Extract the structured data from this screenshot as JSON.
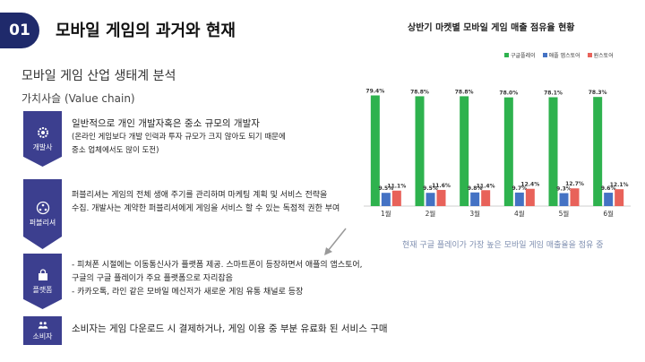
{
  "header": {
    "number": "01",
    "title": "모바일 게임의 과거와 현재"
  },
  "left": {
    "subtitle": "모바일 게임 산업 생태계 분석",
    "value_chain_title": "가치사슬 (Value chain)",
    "steps": [
      {
        "label": "개발사",
        "icon": "gear-icon"
      },
      {
        "label": "퍼블리셔",
        "icon": "network-icon"
      },
      {
        "label": "플랫폼",
        "icon": "shopping-bag-icon"
      },
      {
        "label": "소비자",
        "icon": "people-icon"
      }
    ],
    "descriptions": {
      "developer_lead": "일반적으로 개인 개발자혹은 중소 규모의 개발자",
      "developer_line2": "(온라인 게임보다 개발 인력과 투자 규모가 크지 않아도 되기 때문에",
      "developer_line3": "중소 업체에서도 많이 도전)",
      "publisher_line1": "퍼블리셔는 게임의 전체 생애 주기를 관리하며 마케팅 계획 및 서비스 전략을",
      "publisher_line2": "수집. 개발사는 계약한 퍼블리셔에게 게임을 서비스 할 수 있는 독점적 권한 부여",
      "platform_line1": "- 피쳐폰 시절에는 이동통신사가 플랫폼 제공. 스마트폰이 등장하면서 애플의 앱스토어,",
      "platform_line2": "구글의 구글 플레이가 주요 플랫폼으로 자리잡음",
      "platform_line3": "- 카카오톡, 라인 같은 모바일 메신저가 새로운 게임 유통 채널로 등장",
      "consumer_lead": "소비자는 게임 다운로드 시 결제하거나, 게임 이용 중 부분 유료화 된 서비스 구매"
    }
  },
  "chart_note": "현재 구글 플레이가 가장 높은 모바일 게임 매출율을 점유 중",
  "colors": {
    "navy": "#1f2a6b",
    "google": "#2eb24e",
    "apple": "#4472c4",
    "onestore": "#e8625a"
  },
  "chart_data": {
    "type": "bar",
    "title": "상반기 마켓별 모바일 게임 매출 점유율 현황",
    "categories": [
      "1월",
      "2월",
      "3월",
      "4월",
      "5월",
      "6월"
    ],
    "series": [
      {
        "name": "구글플레이",
        "values": [
          79.4,
          78.8,
          78.8,
          78.0,
          78.1,
          78.3
        ],
        "labels": [
          "79.4%",
          "78.8%",
          "78.8%",
          "78.0%",
          "78.1%",
          "78.3%"
        ],
        "color": "#2eb24e"
      },
      {
        "name": "애플 앱스토어",
        "values": [
          9.5,
          9.5,
          9.8,
          9.7,
          9.3,
          9.6
        ],
        "labels": [
          "9.5%",
          "9.5%",
          "9.8%",
          "9.7%",
          "9.3%",
          "9.6%"
        ],
        "color": "#4472c4"
      },
      {
        "name": "원스토어",
        "values": [
          11.1,
          11.6,
          11.4,
          12.4,
          12.7,
          12.1
        ],
        "labels": [
          "11.1%",
          "11.6%",
          "11.4%",
          "12.4%",
          "12.7%",
          "12.1%"
        ],
        "color": "#e8625a"
      }
    ],
    "ylim": [
      0,
      90
    ],
    "grid": false,
    "legend": "top-right"
  }
}
